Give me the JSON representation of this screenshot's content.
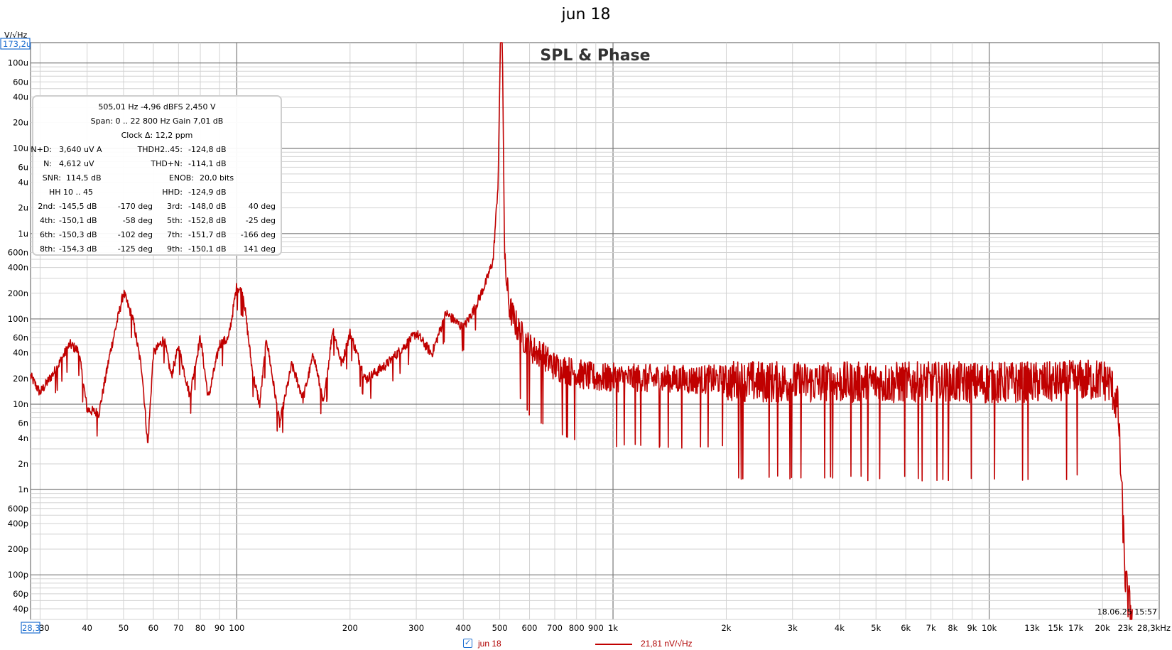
{
  "window": {
    "title": "jun 18"
  },
  "chart_data": {
    "type": "line",
    "title": "SPL & Phase",
    "y_unit": "V/√Hz",
    "y_scale": "log",
    "x_scale": "log",
    "xlim": [
      28.3,
      28300
    ],
    "ylim": [
      3e-11,
      0.0001732
    ],
    "y_top_readout": "173,2u",
    "x_left_readout": "28,3",
    "grid": true,
    "x_ticks": [
      "30",
      "40",
      "50",
      "60",
      "70",
      "80",
      "90",
      "100",
      "200",
      "300",
      "400",
      "500",
      "600",
      "700",
      "800",
      "900",
      "1k",
      "2k",
      "3k",
      "4k",
      "5k",
      "6k",
      "7k",
      "8k",
      "9k",
      "10k",
      "13k",
      "15k",
      "17k",
      "20k",
      "23k",
      "28,3kHz"
    ],
    "x_tick_values": [
      30,
      40,
      50,
      60,
      70,
      80,
      90,
      100,
      200,
      300,
      400,
      500,
      600,
      700,
      800,
      900,
      1000,
      2000,
      3000,
      4000,
      5000,
      6000,
      7000,
      8000,
      9000,
      10000,
      13000,
      15000,
      17000,
      20000,
      23000,
      28300
    ],
    "y_ticks": [
      "100u",
      "60u",
      "40u",
      "20u",
      "10u",
      "6u",
      "4u",
      "2u",
      "1u",
      "600n",
      "400n",
      "200n",
      "100n",
      "60n",
      "40n",
      "20n",
      "10n",
      "6n",
      "4n",
      "2n",
      "1n",
      "600p",
      "400p",
      "200p",
      "100p",
      "60p",
      "40p"
    ],
    "y_tick_values": [
      0.0001,
      6e-05,
      4e-05,
      2e-05,
      1e-05,
      6e-06,
      4e-06,
      2e-06,
      1e-06,
      6e-07,
      4e-07,
      2e-07,
      1e-07,
      6e-08,
      4e-08,
      2e-08,
      1e-08,
      6e-09,
      4e-09,
      2e-09,
      1e-09,
      6e-10,
      4e-10,
      2e-10,
      1e-10,
      6e-11,
      4e-11
    ],
    "timestamp": "18.06.25 15:57",
    "series": [
      {
        "name": "jun 18",
        "color": "#c00000",
        "legend_value": "21,81 nV/√Hz",
        "fundamental_hz": 505.01,
        "fundamental_peak": 0.0001732,
        "x": [
          28.3,
          30,
          33,
          36,
          38,
          40,
          43,
          46,
          50,
          53,
          56,
          58,
          60,
          64,
          67,
          70,
          75,
          80,
          84,
          90,
          95,
          100,
          104,
          110,
          115,
          120,
          130,
          140,
          150,
          160,
          170,
          180,
          190,
          200,
          220,
          250,
          280,
          300,
          330,
          360,
          400,
          430,
          460,
          480,
          495,
          502,
          508,
          515,
          530,
          560,
          600,
          650,
          700,
          800,
          900,
          1000,
          1500,
          2000,
          3000,
          5000,
          8000,
          10000,
          15000,
          20000,
          21000,
          22000,
          22500,
          23000,
          23500,
          24000
        ],
        "y": [
          2.2e-08,
          1.4e-08,
          2.6e-08,
          5.2e-08,
          4.3e-08,
          9e-09,
          8e-09,
          4e-08,
          2.1e-07,
          1e-07,
          2.5e-08,
          3.3e-09,
          4e-08,
          6e-08,
          2.2e-08,
          4.8e-08,
          1.3e-08,
          6.3e-08,
          1.2e-08,
          5.2e-08,
          6e-08,
          2.5e-07,
          2e-07,
          2.5e-08,
          1e-08,
          6e-08,
          6e-09,
          3e-08,
          1.2e-08,
          4e-08,
          1e-08,
          8e-08,
          3e-08,
          7e-08,
          2e-08,
          3e-08,
          5e-08,
          7e-08,
          4e-08,
          1.2e-07,
          8e-08,
          1.4e-07,
          2.8e-07,
          5e-07,
          4e-06,
          0.0001732,
          0.0001732,
          5e-07,
          1.5e-07,
          8e-08,
          5e-08,
          4e-08,
          3e-08,
          2.5e-08,
          2.2e-08,
          2.2e-08,
          2.1e-08,
          2.1e-08,
          2e-08,
          2e-08,
          2e-08,
          2e-08,
          2e-08,
          2.2e-08,
          2e-08,
          1e-08,
          1e-09,
          1e-10,
          5e-11,
          4e-11
        ]
      }
    ]
  },
  "info_box": {
    "line1": "505,01 Hz  -4,96 dBFS  2,450 V",
    "line2": "Span: 0 .. 22 800 Hz   Gain 7,01 dB",
    "line3": "Clock Δ: 12,2 ppm",
    "nd_label": "N+D:",
    "nd_value": "3,640 uV A",
    "thd_label": "THDH2..45:",
    "thd_value": "-124,8 dB",
    "n_label": "N:",
    "n_value": "4,612 uV",
    "thdn_label": "THD+N:",
    "thdn_value": "-114,1 dB",
    "snr_label": "SNR:",
    "snr_value": "114,5 dB",
    "enob_label": "ENOB:",
    "enob_value": "20,0 bits",
    "hh_label": "HH 10 .. 45",
    "hhd_label": "HHD:",
    "hhd_value": "-124,9 dB",
    "harmonics": [
      {
        "label": "2nd:",
        "value": "-145,5 dB",
        "phase": "-170 deg"
      },
      {
        "label": "3rd:",
        "value": "-148,0 dB",
        "phase": "40 deg"
      },
      {
        "label": "4th:",
        "value": "-150,1 dB",
        "phase": "-58 deg"
      },
      {
        "label": "5th:",
        "value": "-152,8 dB",
        "phase": "-25 deg"
      },
      {
        "label": "6th:",
        "value": "-150,3 dB",
        "phase": "-102 deg"
      },
      {
        "label": "7th:",
        "value": "-151,7 dB",
        "phase": "-166 deg"
      },
      {
        "label": "8th:",
        "value": "-154,3 dB",
        "phase": "-125 deg"
      },
      {
        "label": "9th:",
        "value": "-150,1 dB",
        "phase": "141 deg"
      }
    ]
  },
  "legend": {
    "checked": true,
    "name": "jun 18",
    "value": "21,81 nV/√Hz"
  },
  "colors": {
    "trace": "#c00000",
    "grid_major": "#7a7a7a",
    "grid_minor": "#d2d2d2",
    "readout_box": "#1e6fd0"
  }
}
